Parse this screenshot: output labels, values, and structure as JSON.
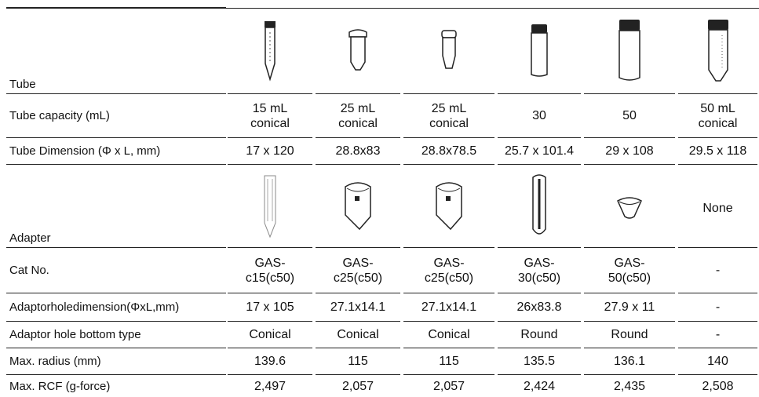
{
  "table": {
    "rows": [
      {
        "label": "Tube"
      },
      {
        "label": "Tube capacity (mL)",
        "cells": [
          "15 mL conical",
          "25 mL conical",
          "25 mL conical",
          "30",
          "50",
          "50 mL conical"
        ]
      },
      {
        "label": "Tube Dimension (Φ x L, mm)",
        "cells": [
          "17 x 120",
          "28.8x83",
          "28.8x78.5",
          "25.7 x 101.4",
          "29 x 108",
          "29.5 x 118"
        ]
      },
      {
        "label": "Adapter",
        "note": "None"
      },
      {
        "label": "Cat No.",
        "cells": [
          "GAS-c15(c50)",
          "GAS-c25(c50)",
          "GAS-c25(c50)",
          "GAS-30(c50)",
          "GAS-50(c50)",
          "-"
        ]
      },
      {
        "label": "Adaptorholedimension(ΦxL,mm)",
        "cells": [
          "17 x 105",
          "27.1x14.1",
          "27.1x14.1",
          "26x83.8",
          "27.9 x 11",
          "-"
        ]
      },
      {
        "label": "Adaptor hole bottom type",
        "cells": [
          "Conical",
          "Conical",
          "Conical",
          "Round",
          "Round",
          "-"
        ]
      },
      {
        "label": "Max. radius (mm)",
        "cells": [
          139.6,
          115,
          115,
          135.5,
          136.1,
          140
        ]
      },
      {
        "label": "Max. RCF (g-force)",
        "cells": [
          "2,497",
          "2,057",
          "2,057",
          "2,424",
          "2,435",
          "2,508"
        ]
      }
    ]
  }
}
